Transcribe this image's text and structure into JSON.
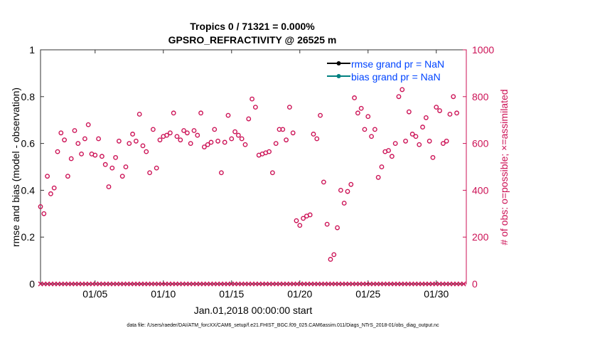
{
  "chart_data": {
    "type": "scatter",
    "title_line1": "Tropics 0 / 71321 = 0.000%",
    "title_line2": "GPSRO_REFRACTIVITY @ 26525 m",
    "xlabel": "Jan.01,2018 00:00:00 start",
    "ylabel_left": "rmse and bias (model - observation)",
    "ylabel_right": "# of obs: o=possible; ×=assimilated",
    "footnote": "data file: /Users/raeder/DAI/ATM_forcXX/CAM6_setup/f.e21.FHIST_BGC.f09_025.CAM6assim.011/Diags_NTrS_2018-01/obs_diag_output.nc",
    "xlim": [
      1.0,
      32.2
    ],
    "ylim_left": [
      0,
      1
    ],
    "ylim_right": [
      0,
      1000
    ],
    "x_ticks": [
      {
        "label": "01/05",
        "value": 5
      },
      {
        "label": "01/10",
        "value": 10
      },
      {
        "label": "01/15",
        "value": 15
      },
      {
        "label": "01/20",
        "value": 20
      },
      {
        "label": "01/25",
        "value": 25
      },
      {
        "label": "01/30",
        "value": 30
      }
    ],
    "y_ticks_left": [
      "0",
      "0.2",
      "0.4",
      "0.6",
      "0.8",
      "1"
    ],
    "y_ticks_right": [
      "0",
      "200",
      "400",
      "600",
      "800",
      "1000"
    ],
    "legend": [
      {
        "label": "rmse grand pr = NaN",
        "color": "#000000"
      },
      {
        "label": "bias grand pr = NaN",
        "color": "#008080"
      }
    ],
    "colors": {
      "obs": "#cc1155",
      "axis_right": "#cc1155",
      "legend_text": "#0044ff"
    },
    "possible_obs": [
      [
        1.0,
        330
      ],
      [
        1.25,
        300
      ],
      [
        1.5,
        460
      ],
      [
        1.75,
        385
      ],
      [
        2.0,
        410
      ],
      [
        2.25,
        565
      ],
      [
        2.5,
        645
      ],
      [
        2.75,
        615
      ],
      [
        3.0,
        460
      ],
      [
        3.25,
        535
      ],
      [
        3.5,
        655
      ],
      [
        3.75,
        600
      ],
      [
        4.0,
        555
      ],
      [
        4.25,
        620
      ],
      [
        4.5,
        680
      ],
      [
        4.75,
        555
      ],
      [
        5.0,
        550
      ],
      [
        5.25,
        620
      ],
      [
        5.5,
        545
      ],
      [
        5.75,
        510
      ],
      [
        6.0,
        415
      ],
      [
        6.25,
        495
      ],
      [
        6.5,
        540
      ],
      [
        6.75,
        610
      ],
      [
        7.0,
        460
      ],
      [
        7.25,
        500
      ],
      [
        7.5,
        600
      ],
      [
        7.75,
        640
      ],
      [
        8.0,
        610
      ],
      [
        8.25,
        725
      ],
      [
        8.5,
        590
      ],
      [
        8.75,
        565
      ],
      [
        9.0,
        475
      ],
      [
        9.25,
        660
      ],
      [
        9.5,
        495
      ],
      [
        9.75,
        615
      ],
      [
        10.0,
        630
      ],
      [
        10.25,
        635
      ],
      [
        10.5,
        645
      ],
      [
        10.75,
        730
      ],
      [
        11.0,
        630
      ],
      [
        11.25,
        615
      ],
      [
        11.5,
        655
      ],
      [
        11.75,
        645
      ],
      [
        12.0,
        600
      ],
      [
        12.25,
        655
      ],
      [
        12.5,
        635
      ],
      [
        12.75,
        730
      ],
      [
        13.0,
        585
      ],
      [
        13.25,
        595
      ],
      [
        13.5,
        605
      ],
      [
        13.75,
        660
      ],
      [
        14.0,
        610
      ],
      [
        14.25,
        475
      ],
      [
        14.5,
        605
      ],
      [
        14.75,
        720
      ],
      [
        15.0,
        620
      ],
      [
        15.25,
        650
      ],
      [
        15.5,
        635
      ],
      [
        15.75,
        620
      ],
      [
        16.0,
        595
      ],
      [
        16.25,
        705
      ],
      [
        16.5,
        790
      ],
      [
        16.75,
        755
      ],
      [
        17.0,
        550
      ],
      [
        17.25,
        555
      ],
      [
        17.5,
        560
      ],
      [
        17.75,
        565
      ],
      [
        18.0,
        475
      ],
      [
        18.25,
        600
      ],
      [
        18.5,
        660
      ],
      [
        18.75,
        660
      ],
      [
        19.0,
        615
      ],
      [
        19.25,
        755
      ],
      [
        19.5,
        645
      ],
      [
        19.75,
        270
      ],
      [
        20.0,
        250
      ],
      [
        20.25,
        280
      ],
      [
        20.5,
        290
      ],
      [
        20.75,
        295
      ],
      [
        21.0,
        640
      ],
      [
        21.25,
        620
      ],
      [
        21.5,
        720
      ],
      [
        21.75,
        435
      ],
      [
        22.0,
        255
      ],
      [
        22.25,
        105
      ],
      [
        22.5,
        125
      ],
      [
        22.75,
        240
      ],
      [
        23.0,
        400
      ],
      [
        23.25,
        345
      ],
      [
        23.5,
        395
      ],
      [
        23.75,
        425
      ],
      [
        24.0,
        795
      ],
      [
        24.25,
        730
      ],
      [
        24.5,
        750
      ],
      [
        24.75,
        660
      ],
      [
        25.0,
        715
      ],
      [
        25.25,
        630
      ],
      [
        25.5,
        660
      ],
      [
        25.75,
        455
      ],
      [
        26.0,
        500
      ],
      [
        26.25,
        565
      ],
      [
        26.5,
        570
      ],
      [
        26.75,
        545
      ],
      [
        27.0,
        600
      ],
      [
        27.25,
        800
      ],
      [
        27.5,
        830
      ],
      [
        27.75,
        610
      ],
      [
        28.0,
        735
      ],
      [
        28.25,
        640
      ],
      [
        28.5,
        630
      ],
      [
        28.75,
        595
      ],
      [
        29.0,
        670
      ],
      [
        29.25,
        710
      ],
      [
        29.5,
        610
      ],
      [
        29.75,
        540
      ],
      [
        30.0,
        755
      ],
      [
        30.25,
        740
      ],
      [
        30.5,
        600
      ],
      [
        30.75,
        610
      ],
      [
        31.0,
        725
      ],
      [
        31.25,
        800
      ],
      [
        31.5,
        730
      ]
    ],
    "assimilated_obs": {
      "value": 0,
      "count": 123,
      "start": 1.0,
      "end": 32.0
    }
  }
}
